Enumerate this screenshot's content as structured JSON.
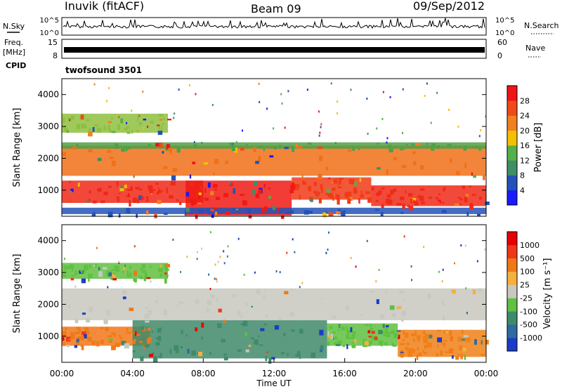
{
  "header": {
    "station": "Inuvik (fitACF)",
    "beam": "Beam 09",
    "date": "09/Sep/2012"
  },
  "strip_labels": {
    "nsky": "N.Sky",
    "freq_line1": "Freq.",
    "freq_line2": "[MHz]",
    "cpid": "CPID",
    "nsearch": "N.Search",
    "nave": "Nave",
    "cpid_value": "twofsound 3501"
  },
  "chart_data": [
    {
      "type": "line",
      "panel": "noise",
      "left_ticks": [
        "10^5",
        "10^0"
      ],
      "right_ticks": [
        "10^5",
        "10^0"
      ],
      "description_series": [
        "N.Sky",
        "N.Search"
      ]
    },
    {
      "type": "line",
      "panel": "frequency",
      "left_ticks": [
        "15",
        "8"
      ],
      "right_ticks": [
        "60",
        "0"
      ],
      "series": [
        {
          "name": "Freq.",
          "values_range": [
            8,
            15
          ]
        },
        {
          "name": "Nave",
          "values_range": [
            0,
            60
          ]
        }
      ]
    },
    {
      "type": "heatmap",
      "panel": "power",
      "ylabel": "Slant Range [km]",
      "ylim": [
        180,
        4500
      ],
      "yticks": [
        "1000",
        "2000",
        "3000",
        "4000"
      ],
      "ytick_values": [
        1000,
        2000,
        3000,
        4000
      ],
      "xlim_hours": [
        0,
        24
      ],
      "colorbar": {
        "label": "Power [dB]",
        "ticks": [
          "4",
          "8",
          "12",
          "16",
          "20",
          "24",
          "28"
        ],
        "colors": [
          "#1a1aff",
          "#2352b8",
          "#3f8f66",
          "#55b04a",
          "#f5c000",
          "#f08020",
          "#f04a18",
          "#f01414"
        ]
      },
      "bands": [
        {
          "start": 0,
          "end": 24,
          "range_min": 1450,
          "range_max": 2400,
          "color": "#f07018"
        },
        {
          "start": 0,
          "end": 8,
          "range_min": 600,
          "range_max": 1300,
          "color": "#f02818"
        },
        {
          "start": 7,
          "end": 13,
          "range_min": 200,
          "range_max": 1300,
          "color": "#f01a14"
        },
        {
          "start": 13,
          "end": 17.5,
          "range_min": 700,
          "range_max": 1400,
          "color": "#f03a18"
        },
        {
          "start": 17.5,
          "end": 24,
          "range_min": 500,
          "range_max": 1150,
          "color": "#f02a18"
        },
        {
          "start": 0,
          "end": 24,
          "range_min": 2300,
          "range_max": 2500,
          "color": "#4fa048"
        },
        {
          "start": 0,
          "end": 6,
          "range_min": 2800,
          "range_max": 3400,
          "color": "#8fbf40"
        },
        {
          "start": 0,
          "end": 24,
          "range_min": 250,
          "range_max": 450,
          "color": "#2352b8"
        }
      ]
    },
    {
      "type": "heatmap",
      "panel": "velocity",
      "ylabel": "Slant Range [km]",
      "ylim": [
        180,
        4500
      ],
      "yticks": [
        "1000",
        "2000",
        "3000",
        "4000"
      ],
      "ytick_values": [
        1000,
        2000,
        3000,
        4000
      ],
      "xlim_hours": [
        0,
        24
      ],
      "xlabel": "Time UT",
      "xticks": [
        "00:00",
        "04:00",
        "08:00",
        "12:00",
        "16:00",
        "20:00",
        "00:00"
      ],
      "colorbar": {
        "label": "Velocity [m s⁻¹]",
        "ticks": [
          "1000",
          "500",
          "100",
          "25",
          "-25",
          "-100",
          "-500",
          "-1000"
        ],
        "colors": [
          "#1a3cc8",
          "#2f6aa0",
          "#3f8a6a",
          "#60c040",
          "#c8c8c0",
          "#f5b040",
          "#f07818",
          "#f03818",
          "#e80000"
        ]
      },
      "bands": [
        {
          "start": 0,
          "end": 24,
          "range_min": 1500,
          "range_max": 2500,
          "color": "#c8c8c0"
        },
        {
          "start": 0,
          "end": 5,
          "range_min": 700,
          "range_max": 1300,
          "color": "#f07818"
        },
        {
          "start": 4,
          "end": 15,
          "range_min": 300,
          "range_max": 1500,
          "color": "#3f8a6a"
        },
        {
          "start": 15,
          "end": 19,
          "range_min": 700,
          "range_max": 1400,
          "color": "#60c040"
        },
        {
          "start": 19,
          "end": 24,
          "range_min": 350,
          "range_max": 1200,
          "color": "#f08018"
        },
        {
          "start": 0,
          "end": 6,
          "range_min": 2800,
          "range_max": 3300,
          "color": "#60c040"
        }
      ]
    }
  ]
}
